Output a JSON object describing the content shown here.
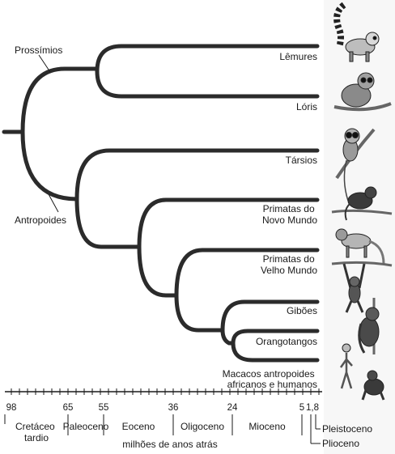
{
  "clade_labels": {
    "prosimians": "Prossímios",
    "anthropoids": "Antropoides"
  },
  "taxa": [
    {
      "id": "lemurs",
      "lines": [
        "Lêmures"
      ]
    },
    {
      "id": "lorises",
      "lines": [
        "Lóris"
      ]
    },
    {
      "id": "tarsiers",
      "lines": [
        "Társios"
      ]
    },
    {
      "id": "new-world",
      "lines": [
        "Primatas do",
        "Novo Mundo"
      ]
    },
    {
      "id": "old-world",
      "lines": [
        "Primatas do",
        "Velho Mundo"
      ]
    },
    {
      "id": "gibbons",
      "lines": [
        "Gibões"
      ]
    },
    {
      "id": "orangutans",
      "lines": [
        "Orangotangos"
      ]
    },
    {
      "id": "african-apes",
      "lines": [
        "Macacos antropoides",
        "africanos e humanos"
      ]
    }
  ],
  "time_axis": {
    "ticks": [
      "98",
      "65",
      "55",
      "36",
      "24",
      "5",
      "1,8"
    ],
    "periods": [
      {
        "id": "late-cretaceous",
        "lines": [
          "Cretáceo",
          "tardio"
        ]
      },
      {
        "id": "paleocene",
        "lines": [
          "Paleoceno"
        ]
      },
      {
        "id": "eocene",
        "lines": [
          "Eoceno"
        ]
      },
      {
        "id": "oligocene",
        "lines": [
          "Oligoceno"
        ]
      },
      {
        "id": "miocene",
        "lines": [
          "Mioceno"
        ]
      },
      {
        "id": "pleistocene",
        "lines": [
          "Pleistoceno"
        ]
      },
      {
        "id": "pliocene",
        "lines": [
          "Plioceno"
        ]
      }
    ],
    "caption": "milhões de anos atrás"
  },
  "colors": {
    "branch": "#2b2b2b",
    "text": "#1a1a1a",
    "animal_strip": "#efefef"
  },
  "icons": [
    "lemur-icon",
    "loris-icon",
    "tarsier-icon",
    "new-world-monkey-icon",
    "old-world-monkey-icon",
    "gibbon-icon",
    "orangutan-icon",
    "human-chimpanzee-icon"
  ]
}
